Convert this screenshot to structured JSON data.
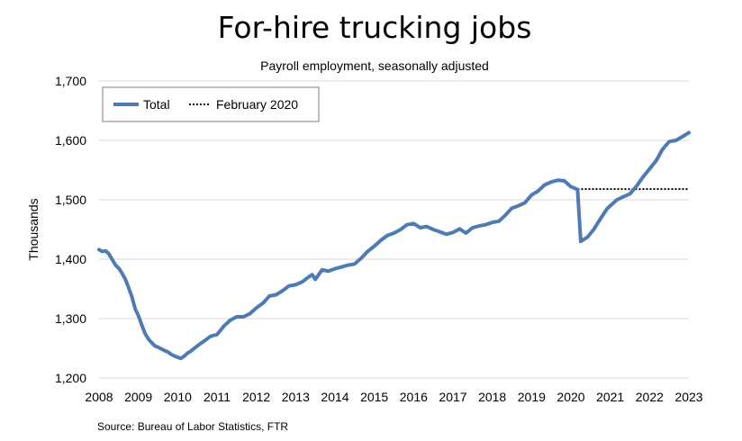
{
  "chart_data": {
    "type": "line",
    "title": "For-hire trucking jobs",
    "subtitle": "Payroll employment, seasonally adjusted",
    "ylabel": "Thousands",
    "xlabel": "",
    "source": "Source: Bureau of Labor Statistics, FTR",
    "ylim": [
      1200,
      1700
    ],
    "xlim": [
      2008,
      2023
    ],
    "y_ticks": [
      "1,200",
      "1,300",
      "1,400",
      "1,500",
      "1,600",
      "1,700"
    ],
    "y_tick_values": [
      1200,
      1300,
      1400,
      1500,
      1600,
      1700
    ],
    "x_ticks": [
      "2008",
      "2009",
      "2010",
      "2011",
      "2012",
      "2013",
      "2014",
      "2015",
      "2016",
      "2017",
      "2018",
      "2019",
      "2020",
      "2021",
      "2022",
      "2023"
    ],
    "x_tick_values": [
      2008,
      2009,
      2010,
      2011,
      2012,
      2013,
      2014,
      2015,
      2016,
      2017,
      2018,
      2019,
      2020,
      2021,
      2022,
      2023
    ],
    "grid": "horizontal",
    "legend_position": "top-left",
    "colors": {
      "total": "#4f7bb5",
      "reference": "#000000",
      "grid": "#d9d9d9"
    },
    "series": [
      {
        "name": "Total",
        "style": "solid",
        "x": [
          2008.0,
          2008.08,
          2008.17,
          2008.25,
          2008.33,
          2008.42,
          2008.5,
          2008.58,
          2008.67,
          2008.75,
          2008.83,
          2008.92,
          2009.0,
          2009.08,
          2009.17,
          2009.25,
          2009.33,
          2009.42,
          2009.5,
          2009.58,
          2009.67,
          2009.75,
          2009.83,
          2009.92,
          2010.0,
          2010.08,
          2010.17,
          2010.25,
          2010.33,
          2010.42,
          2010.5,
          2010.58,
          2010.67,
          2010.75,
          2010.83,
          2010.92,
          2011.0,
          2011.17,
          2011.33,
          2011.5,
          2011.67,
          2011.83,
          2012.0,
          2012.17,
          2012.33,
          2012.5,
          2012.67,
          2012.83,
          2013.0,
          2013.17,
          2013.33,
          2013.42,
          2013.5,
          2013.67,
          2013.83,
          2014.0,
          2014.17,
          2014.33,
          2014.5,
          2014.67,
          2014.83,
          2015.0,
          2015.17,
          2015.33,
          2015.5,
          2015.67,
          2015.83,
          2016.0,
          2016.17,
          2016.33,
          2016.5,
          2016.67,
          2016.83,
          2017.0,
          2017.17,
          2017.33,
          2017.5,
          2017.67,
          2017.83,
          2018.0,
          2018.17,
          2018.33,
          2018.5,
          2018.67,
          2018.83,
          2019.0,
          2019.17,
          2019.33,
          2019.5,
          2019.67,
          2019.83,
          2020.0,
          2020.08,
          2020.17,
          2020.25,
          2020.42,
          2020.58,
          2020.75,
          2020.92,
          2021.0,
          2021.17,
          2021.33,
          2021.5,
          2021.67,
          2021.83,
          2022.0,
          2022.17,
          2022.33,
          2022.5,
          2022.67,
          2022.83,
          2023.0
        ],
        "values": [
          1416,
          1413,
          1414,
          1409,
          1400,
          1390,
          1385,
          1377,
          1366,
          1352,
          1338,
          1316,
          1305,
          1290,
          1275,
          1266,
          1260,
          1254,
          1252,
          1249,
          1246,
          1244,
          1240,
          1237,
          1235,
          1233,
          1237,
          1242,
          1245,
          1250,
          1254,
          1258,
          1262,
          1266,
          1270,
          1272,
          1273,
          1287,
          1297,
          1303,
          1303,
          1308,
          1318,
          1326,
          1338,
          1340,
          1347,
          1355,
          1357,
          1362,
          1370,
          1374,
          1366,
          1382,
          1380,
          1384,
          1387,
          1390,
          1392,
          1402,
          1413,
          1422,
          1432,
          1440,
          1444,
          1450,
          1458,
          1460,
          1453,
          1455,
          1450,
          1446,
          1442,
          1445,
          1451,
          1444,
          1453,
          1456,
          1458,
          1462,
          1464,
          1474,
          1486,
          1490,
          1495,
          1508,
          1515,
          1525,
          1530,
          1533,
          1532,
          1522,
          1520,
          1517,
          1430,
          1437,
          1450,
          1468,
          1485,
          1490,
          1500,
          1505,
          1510,
          1523,
          1538,
          1552,
          1566,
          1585,
          1598,
          1600,
          1606,
          1613
        ]
      },
      {
        "name": "February 2020",
        "style": "dotted",
        "x": [
          2020.08,
          2023.0
        ],
        "values": [
          1518,
          1518
        ]
      }
    ]
  }
}
